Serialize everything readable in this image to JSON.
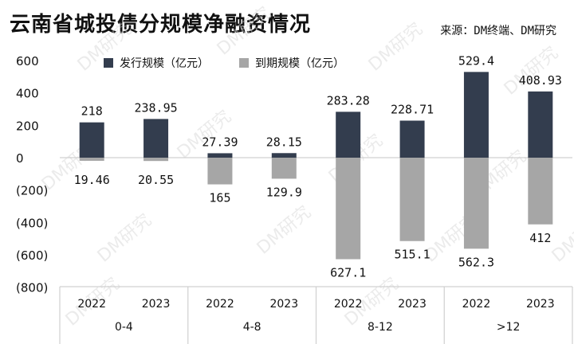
{
  "header": {
    "title": "云南省城投债分规模净融资情况",
    "source": "来源：DM终端、DM研究"
  },
  "watermark": "DM研究",
  "colors": {
    "issue": "#333d4e",
    "maturity": "#a6a6a6",
    "axis": "#d0d0d0"
  },
  "chart_data": {
    "type": "bar",
    "title": "云南省城投债分规模净融资情况",
    "xlabel": "",
    "ylabel": "",
    "ylim": [
      -800,
      600
    ],
    "yticks": [
      600,
      400,
      200,
      0,
      -200,
      -400,
      -600,
      -800
    ],
    "ytick_labels": [
      "600",
      "400",
      "200",
      "0",
      "(200)",
      "(400)",
      "(600)",
      "(800)"
    ],
    "grid": false,
    "legend_position": "top-left",
    "groups": [
      "0-4",
      "4-8",
      "8-12",
      ">12"
    ],
    "categories": [
      "2022",
      "2023",
      "2022",
      "2023",
      "2022",
      "2023",
      "2022",
      "2023"
    ],
    "series": [
      {
        "name": "发行规模（亿元）",
        "values": [
          218,
          238.95,
          27.39,
          28.15,
          283.28,
          228.71,
          529.4,
          408.93
        ],
        "labels": [
          "218",
          "238.95",
          "27.39",
          "28.15",
          "283.28",
          "228.71",
          "529.4",
          "408.93"
        ]
      },
      {
        "name": "到期规模（亿元）",
        "values": [
          -19.46,
          -20.55,
          -165,
          -129.9,
          -627.1,
          -515.1,
          -562.3,
          -412
        ],
        "labels": [
          "19.46",
          "20.55",
          "165",
          "129.9",
          "627.1",
          "515.1",
          "562.3",
          "412"
        ]
      }
    ]
  }
}
